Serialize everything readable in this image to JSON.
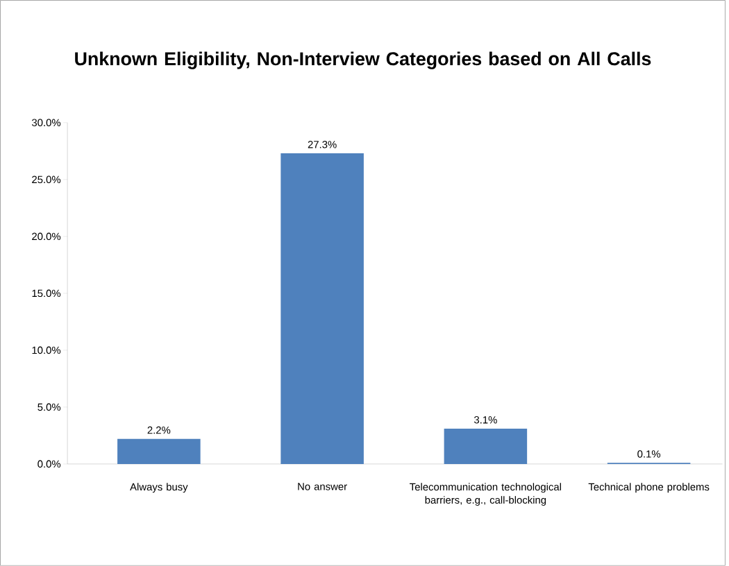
{
  "chart_data": {
    "type": "bar",
    "title": "Unknown Eligibility, Non-Interview Categories based on All Calls",
    "categories": [
      "Always busy",
      "No answer",
      "Telecommunication technological barriers, e.g., call-blocking",
      "Technical phone problems"
    ],
    "values": [
      2.2,
      27.3,
      3.1,
      0.1
    ],
    "value_labels": [
      "2.2%",
      "27.3%",
      "3.1%",
      "0.1%"
    ],
    "color": "#4f81bd",
    "ylim": [
      0,
      30
    ],
    "yticks": [
      {
        "value": 0,
        "label": "0.0%"
      },
      {
        "value": 5,
        "label": "5.0%"
      },
      {
        "value": 10,
        "label": "10.0%"
      },
      {
        "value": 15,
        "label": "15.0%"
      },
      {
        "value": 20,
        "label": "20.0%"
      },
      {
        "value": 25,
        "label": "25.0%"
      },
      {
        "value": 30,
        "label": "30.0%"
      }
    ]
  }
}
